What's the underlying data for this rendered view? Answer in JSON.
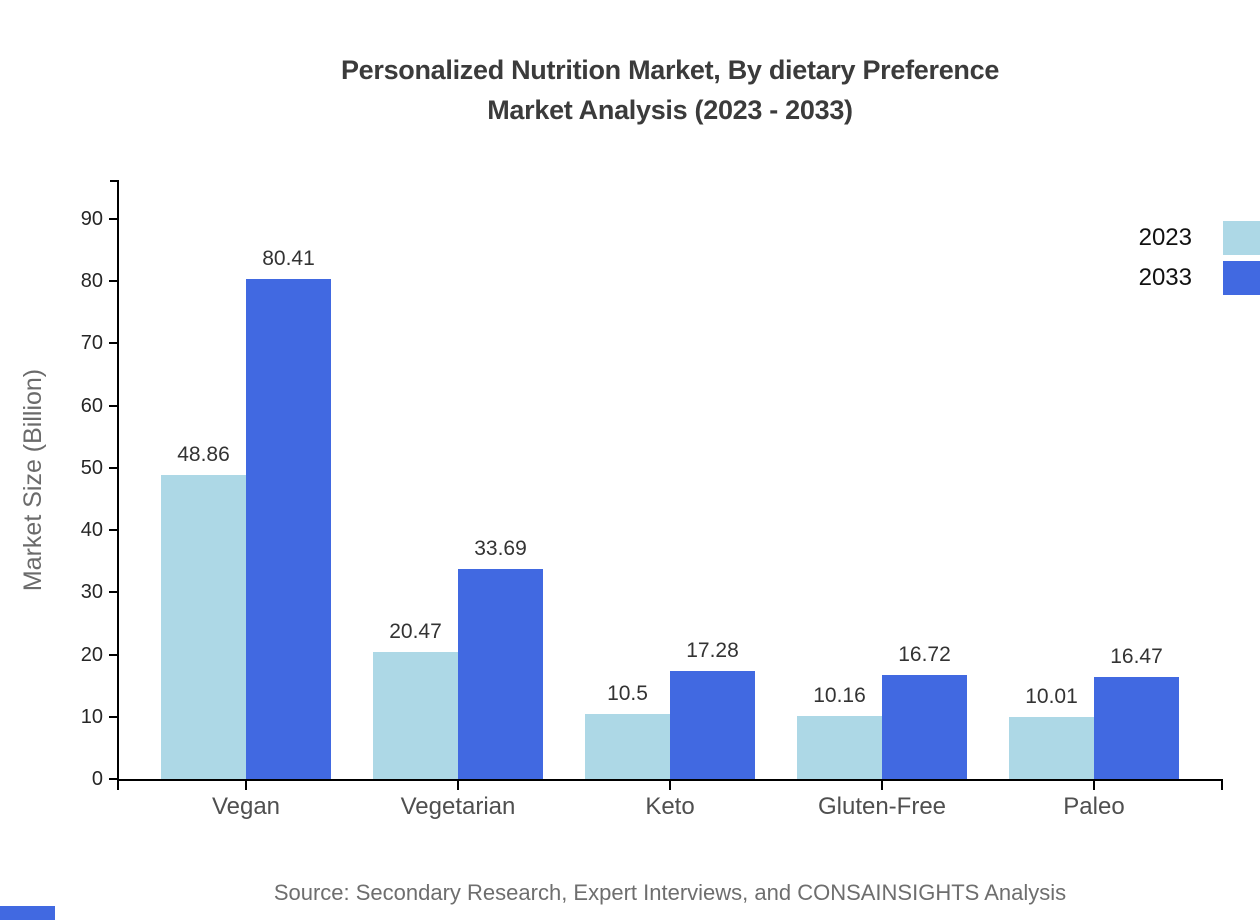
{
  "title": {
    "line1": "Personalized Nutrition Market, By dietary Preference",
    "line2": "Market Analysis (2023 - 2033)"
  },
  "y_axis": {
    "label": "Market Size (Billion)"
  },
  "source": "Source: Secondary Research, Expert Interviews, and CONSAINSIGHTS Analysis",
  "colors": {
    "series_2023": "#ADD8E6",
    "series_2033": "#4169E1",
    "axis": "#000000",
    "title_text": "#3b3b3b",
    "corner_accent": "#4169E1"
  },
  "chart_data": {
    "type": "bar",
    "title": "Personalized Nutrition Market, By dietary Preference Market Analysis (2023 - 2033)",
    "xlabel": "",
    "ylabel": "Market Size (Billion)",
    "categories": [
      "Vegan",
      "Vegetarian",
      "Keto",
      "Gluten-Free",
      "Paleo"
    ],
    "series": [
      {
        "name": "2023",
        "color": "#ADD8E6",
        "values": [
          48.86,
          20.47,
          10.5,
          10.16,
          10.01
        ]
      },
      {
        "name": "2033",
        "color": "#4169E1",
        "values": [
          80.41,
          33.69,
          17.28,
          16.72,
          16.47
        ]
      }
    ],
    "yticks": [
      0,
      10,
      20,
      30,
      40,
      50,
      60,
      70,
      80,
      90
    ],
    "ylim": [
      0,
      95
    ],
    "grid": false,
    "legend_position": "top-right",
    "value_labels_shown": true
  }
}
